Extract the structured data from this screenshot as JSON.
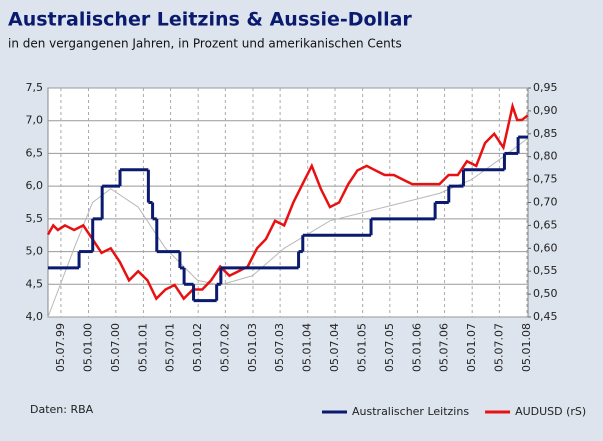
{
  "chart_data": {
    "type": "line",
    "title": "Australischer Leitzins & Aussie-Dollar",
    "subtitle": "in den vergangenen Jahren, in Prozent und amerikanischen Cents",
    "source": "Daten: RBA",
    "xlim": [
      "1999-04-10",
      "2008-01-12"
    ],
    "xticks": [
      {
        "value": "1999-07-05",
        "label": "05.07.99"
      },
      {
        "value": "2000-01-05",
        "label": "05.01.00"
      },
      {
        "value": "2000-07-05",
        "label": "05.07.00"
      },
      {
        "value": "2001-01-05",
        "label": "05.01.01"
      },
      {
        "value": "2001-07-05",
        "label": "05.07.01"
      },
      {
        "value": "2002-01-05",
        "label": "05.01.02"
      },
      {
        "value": "2002-07-05",
        "label": "05.07.02"
      },
      {
        "value": "2003-01-05",
        "label": "05.01.03"
      },
      {
        "value": "2003-07-05",
        "label": "05.07.03"
      },
      {
        "value": "2004-01-05",
        "label": "05.01.04"
      },
      {
        "value": "2004-07-05",
        "label": "05.07.04"
      },
      {
        "value": "2005-01-05",
        "label": "05.01.05"
      },
      {
        "value": "2005-07-05",
        "label": "05.07.05"
      },
      {
        "value": "2006-01-05",
        "label": "05.01.06"
      },
      {
        "value": "2006-07-05",
        "label": "05.07.06"
      },
      {
        "value": "2007-01-05",
        "label": "05.01.07"
      },
      {
        "value": "2007-07-05",
        "label": "05.07.07"
      },
      {
        "value": "2008-01-05",
        "label": "05.01.08"
      }
    ],
    "ylim": [
      4.0,
      7.5
    ],
    "yticks": [
      {
        "value": 4.0,
        "label": "4,0"
      },
      {
        "value": 4.5,
        "label": "4,5"
      },
      {
        "value": 5.0,
        "label": "5,0"
      },
      {
        "value": 5.5,
        "label": "5,5"
      },
      {
        "value": 6.0,
        "label": "6,0"
      },
      {
        "value": 6.5,
        "label": "6,5"
      },
      {
        "value": 7.0,
        "label": "7,0"
      },
      {
        "value": 7.5,
        "label": "7,5"
      }
    ],
    "y2lim": [
      0.45,
      0.95
    ],
    "y2ticks": [
      {
        "value": 0.45,
        "label": "0,45"
      },
      {
        "value": 0.5,
        "label": "0,50"
      },
      {
        "value": 0.55,
        "label": "0,55"
      },
      {
        "value": 0.6,
        "label": "0,60"
      },
      {
        "value": 0.65,
        "label": "0,65"
      },
      {
        "value": 0.7,
        "label": "0,70"
      },
      {
        "value": 0.75,
        "label": "0,75"
      },
      {
        "value": 0.8,
        "label": "0,80"
      },
      {
        "value": 0.85,
        "label": "0,85"
      },
      {
        "value": 0.9,
        "label": "0,90"
      },
      {
        "value": 0.95,
        "label": "0,95"
      }
    ],
    "grid": true,
    "legend": "bottom-right",
    "series": [
      {
        "name": "Australischer Leitzins",
        "color": "#0a1a6e",
        "step": true,
        "x": [
          "1999-04-10",
          "1999-11-03",
          "2000-02-02",
          "2000-04-05",
          "2000-08-02",
          "2001-02-07",
          "2001-03-07",
          "2001-04-04",
          "2001-09-05",
          "2001-10-03",
          "2001-12-05",
          "2002-05-08",
          "2002-06-05",
          "2003-11-05",
          "2003-12-03",
          "2005-03-02",
          "2006-05-03",
          "2006-08-02",
          "2006-11-08",
          "2007-08-08",
          "2007-11-07"
        ],
        "values": [
          4.75,
          5.0,
          5.5,
          6.0,
          6.25,
          5.75,
          5.5,
          5.0,
          4.75,
          4.5,
          4.25,
          4.5,
          4.75,
          5.0,
          5.25,
          5.5,
          5.75,
          6.0,
          6.25,
          6.5,
          6.75
        ]
      },
      {
        "name": "AUDUSD (rS)",
        "color": "#e81010",
        "axis": "y2",
        "x": [
          "1999-04-10",
          "1999-05-15",
          "1999-06-15",
          "1999-08-01",
          "1999-10-01",
          "1999-12-01",
          "2000-02-01",
          "2000-04-01",
          "2000-06-01",
          "2000-08-01",
          "2000-10-01",
          "2000-12-01",
          "2001-02-01",
          "2001-04-01",
          "2001-06-01",
          "2001-08-01",
          "2001-10-01",
          "2001-12-01",
          "2002-02-01",
          "2002-04-01",
          "2002-06-01",
          "2002-08-01",
          "2002-10-01",
          "2002-12-01",
          "2003-02-01",
          "2003-04-01",
          "2003-06-01",
          "2003-08-01",
          "2003-10-01",
          "2003-12-01",
          "2004-02-01",
          "2004-04-01",
          "2004-06-01",
          "2004-08-01",
          "2004-10-01",
          "2004-12-01",
          "2005-02-01",
          "2005-04-01",
          "2005-06-01",
          "2005-08-01",
          "2005-10-01",
          "2005-12-01",
          "2006-02-01",
          "2006-04-01",
          "2006-06-01",
          "2006-08-01",
          "2006-10-01",
          "2006-12-01",
          "2007-02-01",
          "2007-04-01",
          "2007-06-01",
          "2007-08-01",
          "2007-10-01",
          "2007-11-01",
          "2007-12-01",
          "2008-01-10"
        ],
        "values": [
          0.63,
          0.65,
          0.64,
          0.65,
          0.64,
          0.65,
          0.62,
          0.59,
          0.6,
          0.57,
          0.53,
          0.55,
          0.53,
          0.49,
          0.51,
          0.52,
          0.49,
          0.51,
          0.51,
          0.53,
          0.56,
          0.54,
          0.55,
          0.56,
          0.6,
          0.62,
          0.66,
          0.65,
          0.7,
          0.74,
          0.78,
          0.73,
          0.69,
          0.7,
          0.74,
          0.77,
          0.78,
          0.77,
          0.76,
          0.76,
          0.75,
          0.74,
          0.74,
          0.74,
          0.74,
          0.76,
          0.76,
          0.79,
          0.78,
          0.83,
          0.85,
          0.82,
          0.91,
          0.88,
          0.88,
          0.89
        ]
      },
      {
        "color": "#b8b8b8",
        "axis": "y2",
        "x": [
          "1999-04-10",
          "1999-10-01",
          "2000-02-01",
          "2000-06-01",
          "2000-12-01",
          "2001-06-01",
          "2002-01-01",
          "2002-06-01",
          "2003-01-01",
          "2003-08-01",
          "2004-06-01",
          "2005-06-01",
          "2006-06-01",
          "2007-01-01",
          "2007-08-01",
          "2008-01-10"
        ],
        "values": [
          0.45,
          0.6,
          0.7,
          0.73,
          0.69,
          0.6,
          0.53,
          0.52,
          0.54,
          0.6,
          0.66,
          0.69,
          0.72,
          0.75,
          0.8,
          0.84
        ]
      }
    ]
  }
}
